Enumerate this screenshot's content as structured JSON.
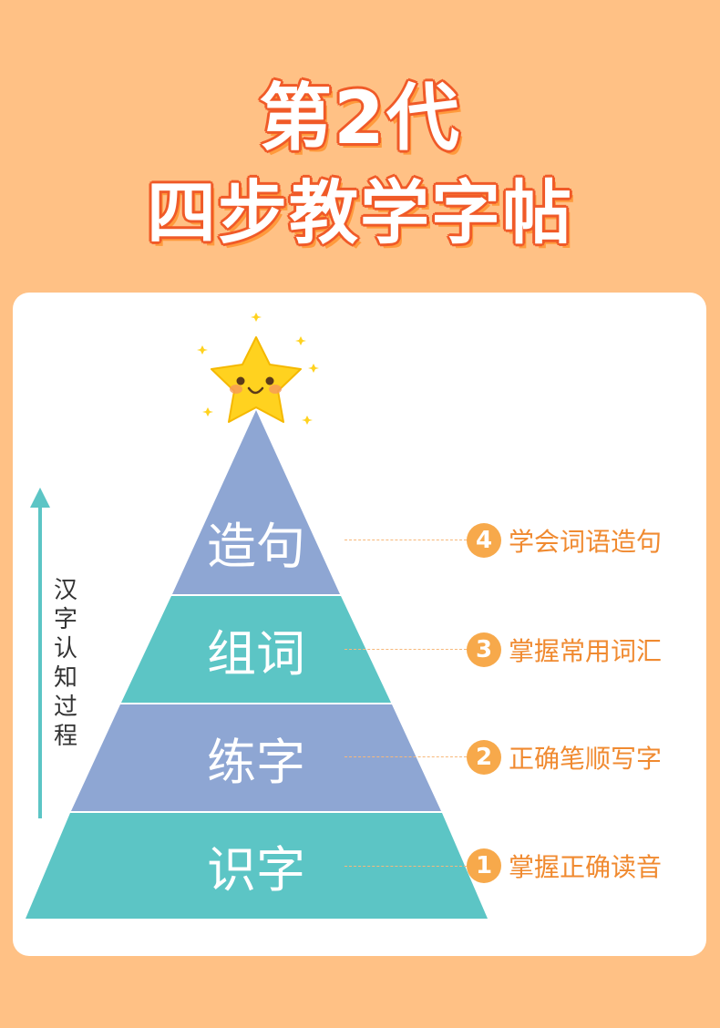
{
  "header": {
    "line1": "第2代",
    "line2": "四步教学字帖"
  },
  "pyramid": {
    "layers": [
      {
        "label": "造句",
        "color": "#8ea6d3"
      },
      {
        "label": "组词",
        "color": "#5cc5c5"
      },
      {
        "label": "练字",
        "color": "#8ea6d3"
      },
      {
        "label": "识字",
        "color": "#5cc5c5"
      }
    ]
  },
  "axis": {
    "chars": [
      "汉",
      "字",
      "认",
      "知",
      "过",
      "程"
    ],
    "color": "#5cc5c5"
  },
  "steps": [
    {
      "num": "4",
      "text": "学会词语造句"
    },
    {
      "num": "3",
      "text": "掌握常用词汇"
    },
    {
      "num": "2",
      "text": "正确笔顺写字"
    },
    {
      "num": "1",
      "text": "掌握正确读音"
    }
  ],
  "colors": {
    "background": "#ffc185",
    "title_outline": "#f05a28",
    "step_accent": "#f7a94b",
    "star": "#ffd21f"
  },
  "icons": {
    "top": "smiling-star-icon"
  }
}
